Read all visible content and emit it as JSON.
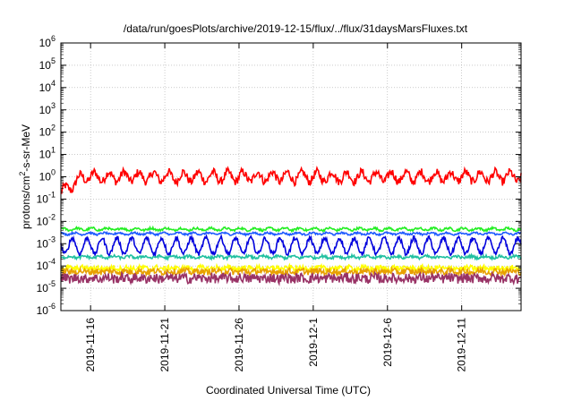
{
  "chart_data": {
    "type": "line",
    "title": "/data/run/goesPlots/archive/2019-12-15/flux/../flux/31daysMarsFluxes.txt",
    "xlabel": "Coordinated Universal Time (UTC)",
    "ylabel": "protons/cm²-s-sr-MeV",
    "yscale": "log",
    "ylim_exp": [
      -6,
      6
    ],
    "y_ticks": [
      {
        "base": "10",
        "exp": "6",
        "v": 6
      },
      {
        "base": "10",
        "exp": "5",
        "v": 5
      },
      {
        "base": "10",
        "exp": "4",
        "v": 4
      },
      {
        "base": "10",
        "exp": "3",
        "v": 3
      },
      {
        "base": "10",
        "exp": "2",
        "v": 2
      },
      {
        "base": "10",
        "exp": "1",
        "v": 1
      },
      {
        "base": "10",
        "exp": "0",
        "v": 0
      },
      {
        "base": "10",
        "exp": "-1",
        "v": -1
      },
      {
        "base": "10",
        "exp": "-2",
        "v": -2
      },
      {
        "base": "10",
        "exp": "-3",
        "v": -3
      },
      {
        "base": "10",
        "exp": "-4",
        "v": -4
      },
      {
        "base": "10",
        "exp": "-5",
        "v": -5
      },
      {
        "base": "10",
        "exp": "-6",
        "v": -6
      }
    ],
    "xlim": [
      "2019-11-14",
      "2019-12-15"
    ],
    "x_ticks": [
      "2019-11-16",
      "2019-11-21",
      "2019-11-26",
      "2019-12-1",
      "2019-12-6",
      "2019-12-11"
    ],
    "grid": true,
    "series": [
      {
        "color": "#ff0000",
        "level": 0.0,
        "noise": 0.18,
        "period": 1.0,
        "amp": 0.22
      },
      {
        "color": "#22ee22",
        "level": -2.35,
        "noise": 0.05,
        "period": 1.0,
        "amp": 0.05
      },
      {
        "color": "#1e5aff",
        "level": -2.55,
        "noise": 0.04,
        "period": 1.0,
        "amp": 0.04
      },
      {
        "color": "#0000dd",
        "level": -3.1,
        "noise": 0.1,
        "period": 1.0,
        "amp": 0.35
      },
      {
        "color": "#20c0a0",
        "level": -3.6,
        "noise": 0.06,
        "period": 1.0,
        "amp": 0.04
      },
      {
        "color": "#ffff00",
        "level": -4.1,
        "noise": 0.12,
        "period": 1.0,
        "amp": 0.03
      },
      {
        "color": "#e8a000",
        "level": -4.25,
        "noise": 0.14,
        "period": 1.0,
        "amp": 0.03
      },
      {
        "color": "#993366",
        "level": -4.55,
        "noise": 0.22,
        "period": 1.0,
        "amp": 0.03
      }
    ]
  }
}
